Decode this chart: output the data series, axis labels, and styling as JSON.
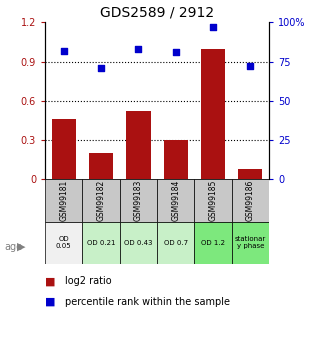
{
  "title": "GDS2589 / 2912",
  "samples": [
    "GSM99181",
    "GSM99182",
    "GSM99183",
    "GSM99184",
    "GSM99185",
    "GSM99186"
  ],
  "log2_ratio": [
    0.46,
    0.2,
    0.52,
    0.3,
    1.0,
    0.08
  ],
  "percentile_rank": [
    0.82,
    0.71,
    0.83,
    0.81,
    0.97,
    0.72
  ],
  "age_labels": [
    "OD\n0.05",
    "OD 0.21",
    "OD 0.43",
    "OD 0.7",
    "OD 1.2",
    "stationar\ny phase"
  ],
  "age_bg_colors": [
    "#f0f0f0",
    "#c8f0c8",
    "#c8f0c8",
    "#c8f0c8",
    "#7de87d",
    "#7de87d"
  ],
  "sample_bg_color": "#c8c8c8",
  "bar_color": "#aa1111",
  "dot_color": "#0000cc",
  "left_ylim": [
    0,
    1.2
  ],
  "right_ylim": [
    0,
    1.0
  ],
  "left_yticks": [
    0,
    0.3,
    0.6,
    0.9,
    1.2
  ],
  "right_yticks": [
    0,
    0.25,
    0.5,
    0.75,
    1.0
  ],
  "right_yticklabels": [
    "0",
    "25",
    "50",
    "75",
    "100%"
  ],
  "left_yticklabels": [
    "0",
    "0.3",
    "0.6",
    "0.9",
    "1.2"
  ],
  "hline_values": [
    0.3,
    0.6,
    0.9
  ],
  "title_fontsize": 10,
  "tick_fontsize": 7,
  "legend_fontsize": 7
}
